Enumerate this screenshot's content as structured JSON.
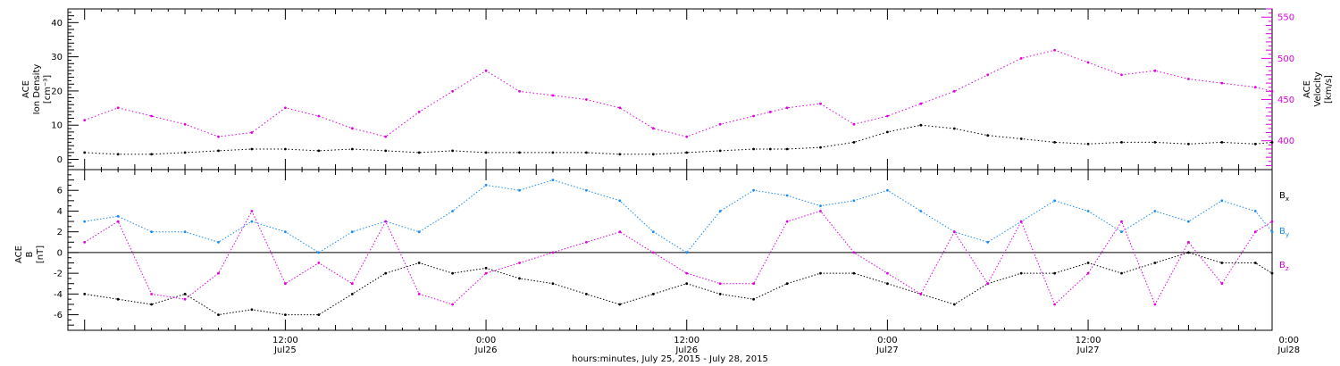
{
  "chart_data": [
    {
      "type": "scatter",
      "panel": "top",
      "ylabel_left": [
        "ACE",
        "Ion Density",
        "[cm⁻³]"
      ],
      "ylabel_right": [
        "ACE",
        "Velocity",
        "[km/s]"
      ],
      "ylim_left": [
        -3,
        44
      ],
      "yticks_left": [
        0,
        10,
        20,
        30,
        40
      ],
      "ylim_right": [
        365,
        560
      ],
      "yticks_right": [
        400,
        450,
        500,
        550
      ],
      "grid": false,
      "series": [
        {
          "name": "",
          "axis": "left",
          "color": "#000000",
          "x": [
            0,
            2,
            4,
            6,
            8,
            10,
            12,
            14,
            16,
            18,
            20,
            22,
            24,
            26,
            28,
            30,
            32,
            34,
            36,
            38,
            40,
            41,
            42,
            44,
            46,
            48,
            50,
            52,
            54,
            56,
            58,
            60,
            62,
            64,
            66,
            68,
            70,
            71
          ],
          "values": [
            2,
            1.5,
            1.5,
            2,
            2.5,
            3,
            3,
            2.5,
            3,
            2.5,
            2,
            2.5,
            2,
            2,
            2,
            2,
            1.5,
            1.5,
            2,
            2.5,
            3,
            3,
            3,
            3.5,
            5,
            8,
            10,
            9,
            7,
            6,
            5,
            4.5,
            5,
            5,
            4.5,
            5,
            4.5,
            5
          ]
        },
        {
          "name": "",
          "axis": "right",
          "color": "#e000e0",
          "x": [
            0,
            2,
            4,
            6,
            8,
            10,
            12,
            14,
            16,
            18,
            20,
            22,
            24,
            26,
            28,
            30,
            32,
            34,
            36,
            38,
            40,
            41,
            42,
            44,
            46,
            48,
            50,
            52,
            54,
            56,
            58,
            60,
            62,
            64,
            66,
            68,
            70,
            71
          ],
          "values": [
            425,
            440,
            430,
            420,
            405,
            410,
            440,
            430,
            415,
            405,
            435,
            460,
            485,
            460,
            455,
            450,
            440,
            415,
            405,
            420,
            430,
            435,
            440,
            445,
            420,
            430,
            445,
            460,
            480,
            500,
            510,
            495,
            480,
            485,
            475,
            470,
            465,
            460
          ]
        }
      ]
    },
    {
      "type": "scatter",
      "panel": "bottom",
      "ylabel_left": [
        "ACE",
        "B",
        "[nT]"
      ],
      "ylim": [
        -7.5,
        8
      ],
      "yticks": [
        -6,
        -4,
        -2,
        0,
        2,
        4,
        6
      ],
      "zero_line": true,
      "grid": false,
      "series": [
        {
          "name": "Bx",
          "color": "#000000",
          "x": [
            0,
            2,
            4,
            6,
            8,
            10,
            12,
            14,
            16,
            18,
            20,
            22,
            24,
            26,
            28,
            30,
            32,
            34,
            36,
            38,
            40,
            42,
            44,
            46,
            48,
            50,
            52,
            54,
            56,
            58,
            60,
            62,
            64,
            66,
            68,
            70,
            71
          ],
          "values": [
            -4,
            -4.5,
            -5,
            -4,
            -6,
            -5.5,
            -6,
            -6,
            -4,
            -2,
            -1,
            -2,
            -1.5,
            -2.5,
            -3,
            -4,
            -5,
            -4,
            -3,
            -4,
            -4.5,
            -3,
            -2,
            -2,
            -3,
            -4,
            -5,
            -3,
            -2,
            -2,
            -1,
            -2,
            -1,
            0,
            -1,
            -1,
            -2
          ]
        },
        {
          "name": "By",
          "color": "#1a8cf0",
          "x": [
            0,
            2,
            4,
            6,
            8,
            10,
            12,
            14,
            16,
            18,
            20,
            22,
            24,
            26,
            28,
            30,
            32,
            34,
            36,
            38,
            40,
            42,
            44,
            46,
            48,
            50,
            52,
            54,
            56,
            58,
            60,
            62,
            64,
            66,
            68,
            70,
            71
          ],
          "values": [
            3,
            3.5,
            2,
            2,
            1,
            3,
            2,
            0,
            2,
            3,
            2,
            4,
            6.5,
            6,
            7,
            6,
            5,
            2,
            0,
            4,
            6,
            5.5,
            4.5,
            5,
            6,
            4,
            2,
            1,
            3,
            5,
            4,
            2,
            4,
            3,
            5,
            4,
            2
          ]
        },
        {
          "name": "Bz",
          "color": "#e000e0",
          "x": [
            0,
            2,
            4,
            6,
            8,
            10,
            12,
            14,
            16,
            18,
            20,
            22,
            24,
            26,
            28,
            30,
            32,
            34,
            36,
            38,
            40,
            42,
            44,
            46,
            48,
            50,
            52,
            54,
            56,
            58,
            60,
            62,
            64,
            66,
            68,
            70,
            71
          ],
          "values": [
            1,
            3,
            -4,
            -4.5,
            -2,
            4,
            -3,
            -1,
            -3,
            3,
            -4,
            -5,
            -2,
            -1,
            0,
            1,
            2,
            0,
            -2,
            -3,
            -3,
            3,
            4,
            0,
            -2,
            -4,
            2,
            -3,
            3,
            -5,
            -2,
            3,
            -5,
            1,
            -3,
            2,
            3
          ]
        }
      ],
      "legend": [
        "Bx",
        "By",
        "Bz"
      ]
    }
  ],
  "x_axis": {
    "xlim_hours": [
      -1,
      71
    ],
    "ticks": [
      {
        "hour": 12,
        "time": "12:00",
        "date": "Jul25"
      },
      {
        "hour": 24,
        "time": "0:00",
        "date": "Jul26"
      },
      {
        "hour": 36,
        "time": "12:00",
        "date": "Jul26"
      },
      {
        "hour": 48,
        "time": "0:00",
        "date": "Jul27"
      },
      {
        "hour": 60,
        "time": "12:00",
        "date": "Jul27"
      },
      {
        "hour": 72,
        "time": "0:00",
        "date": "Jul28"
      }
    ],
    "label": "hours:minutes, July 25, 2015 - July 28, 2015"
  },
  "colors": {
    "density": "#000000",
    "velocity": "#e000e0",
    "bx": "#000000",
    "by": "#1a8cf0",
    "bz": "#e000e0"
  }
}
